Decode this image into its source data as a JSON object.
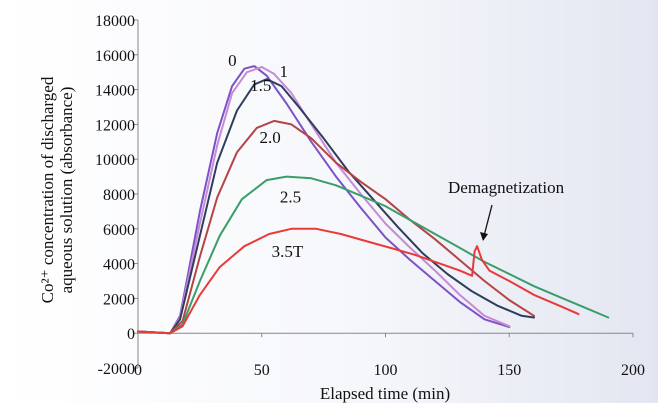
{
  "chart_data": {
    "type": "line",
    "title": "",
    "xlabel": "Elapsed time (min)",
    "ylabel_lines": [
      "Co²⁺ concentration of discharged",
      "aqueous solution (absorbance)"
    ],
    "xlim": [
      0,
      200
    ],
    "ylim": [
      -2000,
      18000
    ],
    "x_ticks": [
      "0",
      "50",
      "100",
      "150",
      "200"
    ],
    "y_ticks": [
      "-2000",
      "0",
      "2000",
      "4000",
      "6000",
      "8000",
      "10000",
      "12000",
      "14000",
      "16000",
      "18000"
    ],
    "grid": false,
    "annotation": {
      "text": "Demagnetization",
      "x": 136,
      "y": 5100
    },
    "series": [
      {
        "name": "0",
        "color": "#7b52c8",
        "points": [
          [
            0,
            100
          ],
          [
            13,
            0
          ],
          [
            17,
            1000
          ],
          [
            25,
            7000
          ],
          [
            32,
            11500
          ],
          [
            38,
            14200
          ],
          [
            43,
            15200
          ],
          [
            47,
            15350
          ],
          [
            52,
            14800
          ],
          [
            60,
            13200
          ],
          [
            70,
            11000
          ],
          [
            80,
            9000
          ],
          [
            90,
            7200
          ],
          [
            100,
            5500
          ],
          [
            110,
            4200
          ],
          [
            120,
            3000
          ],
          [
            130,
            1800
          ],
          [
            140,
            800
          ],
          [
            150,
            350
          ]
        ]
      },
      {
        "name": "1",
        "color": "#c88ad6",
        "points": [
          [
            0,
            100
          ],
          [
            13,
            0
          ],
          [
            17,
            900
          ],
          [
            25,
            6300
          ],
          [
            32,
            10800
          ],
          [
            38,
            13800
          ],
          [
            44,
            15000
          ],
          [
            50,
            15300
          ],
          [
            55,
            14900
          ],
          [
            62,
            13800
          ],
          [
            70,
            12000
          ],
          [
            80,
            9800
          ],
          [
            90,
            8000
          ],
          [
            100,
            6300
          ],
          [
            110,
            4900
          ],
          [
            120,
            3600
          ],
          [
            130,
            2200
          ],
          [
            140,
            1000
          ],
          [
            150,
            400
          ]
        ]
      },
      {
        "name": "1.5",
        "color": "#2e3c5e",
        "points": [
          [
            0,
            100
          ],
          [
            13,
            0
          ],
          [
            17,
            800
          ],
          [
            25,
            5600
          ],
          [
            32,
            9800
          ],
          [
            40,
            12800
          ],
          [
            47,
            14300
          ],
          [
            52,
            14600
          ],
          [
            58,
            14200
          ],
          [
            65,
            13000
          ],
          [
            75,
            11200
          ],
          [
            85,
            9300
          ],
          [
            95,
            7700
          ],
          [
            105,
            6100
          ],
          [
            115,
            4600
          ],
          [
            125,
            3400
          ],
          [
            135,
            2400
          ],
          [
            145,
            1600
          ],
          [
            155,
            1000
          ],
          [
            160,
            900
          ]
        ]
      },
      {
        "name": "2.0",
        "color": "#b54444",
        "points": [
          [
            0,
            100
          ],
          [
            13,
            0
          ],
          [
            18,
            700
          ],
          [
            25,
            4400
          ],
          [
            32,
            7800
          ],
          [
            40,
            10400
          ],
          [
            48,
            11800
          ],
          [
            55,
            12200
          ],
          [
            62,
            12000
          ],
          [
            70,
            11200
          ],
          [
            80,
            9800
          ],
          [
            90,
            8700
          ],
          [
            100,
            7700
          ],
          [
            110,
            6500
          ],
          [
            120,
            5400
          ],
          [
            130,
            4200
          ],
          [
            140,
            3000
          ],
          [
            150,
            1900
          ],
          [
            160,
            1000
          ]
        ]
      },
      {
        "name": "2.5",
        "color": "#3a9e6a",
        "points": [
          [
            0,
            100
          ],
          [
            13,
            0
          ],
          [
            18,
            500
          ],
          [
            25,
            3000
          ],
          [
            33,
            5600
          ],
          [
            42,
            7700
          ],
          [
            52,
            8800
          ],
          [
            60,
            9000
          ],
          [
            70,
            8900
          ],
          [
            80,
            8500
          ],
          [
            90,
            7900
          ],
          [
            100,
            7300
          ],
          [
            110,
            6500
          ],
          [
            120,
            5700
          ],
          [
            130,
            4900
          ],
          [
            140,
            4100
          ],
          [
            150,
            3400
          ],
          [
            160,
            2700
          ],
          [
            170,
            2100
          ],
          [
            180,
            1500
          ],
          [
            190,
            900
          ]
        ]
      },
      {
        "name": "3.5T",
        "color": "#e83a3a",
        "points": [
          [
            0,
            100
          ],
          [
            13,
            0
          ],
          [
            18,
            400
          ],
          [
            25,
            2200
          ],
          [
            33,
            3800
          ],
          [
            43,
            5000
          ],
          [
            53,
            5700
          ],
          [
            62,
            6000
          ],
          [
            72,
            6000
          ],
          [
            82,
            5700
          ],
          [
            92,
            5300
          ],
          [
            102,
            4900
          ],
          [
            112,
            4500
          ],
          [
            122,
            4000
          ],
          [
            130,
            3600
          ],
          [
            135,
            3300
          ],
          [
            136,
            4700
          ],
          [
            137,
            5000
          ],
          [
            139,
            4200
          ],
          [
            142,
            3600
          ],
          [
            150,
            3000
          ],
          [
            160,
            2200
          ],
          [
            170,
            1600
          ],
          [
            178,
            1100
          ]
        ]
      }
    ]
  }
}
